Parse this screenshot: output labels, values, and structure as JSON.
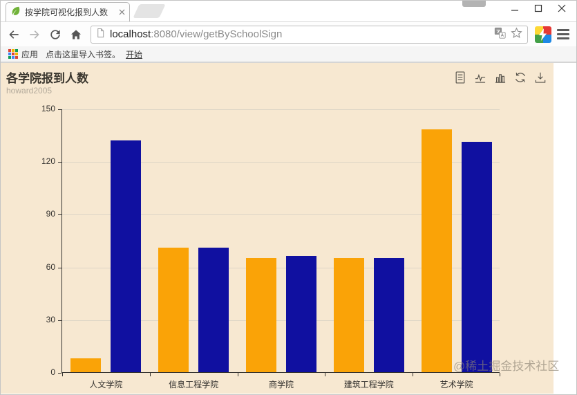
{
  "browser": {
    "tab": {
      "title": "按学院可视化报到人数"
    },
    "url": {
      "host": "localhost",
      "path": ":8080/view/getBySchoolSign"
    },
    "bookmarks": {
      "apps": "应用",
      "import_hint": "点击这里导入书签。",
      "start": "开始"
    }
  },
  "page": {
    "title": "各学院报到人数",
    "subtitle": "howard2005",
    "watermark": "@稀土掘金技术社区",
    "colors": {
      "background": "#f7e8d1",
      "orange": "#faa307",
      "blue": "#1010a0",
      "axis": "#33312e",
      "grid": "#ddd5c6"
    }
  },
  "chart_data": {
    "type": "bar",
    "title": "各学院报到人数",
    "subtitle": "howard2005",
    "categories": [
      "人文学院",
      "信息工程学院",
      "商学院",
      "建筑工程学院",
      "艺术学院"
    ],
    "series": [
      {
        "name": "orange",
        "color": "#faa307",
        "values": [
          8,
          71,
          65,
          65,
          138
        ]
      },
      {
        "name": "blue",
        "color": "#1010a0",
        "values": [
          132,
          71,
          66,
          65,
          131
        ]
      }
    ],
    "xlabel": "",
    "ylabel": "",
    "ylim": [
      0,
      150
    ],
    "yticks": [
      0,
      30,
      60,
      90,
      120,
      150
    ],
    "grid": true,
    "legend_position": "none",
    "background": "#f7e8d1"
  }
}
